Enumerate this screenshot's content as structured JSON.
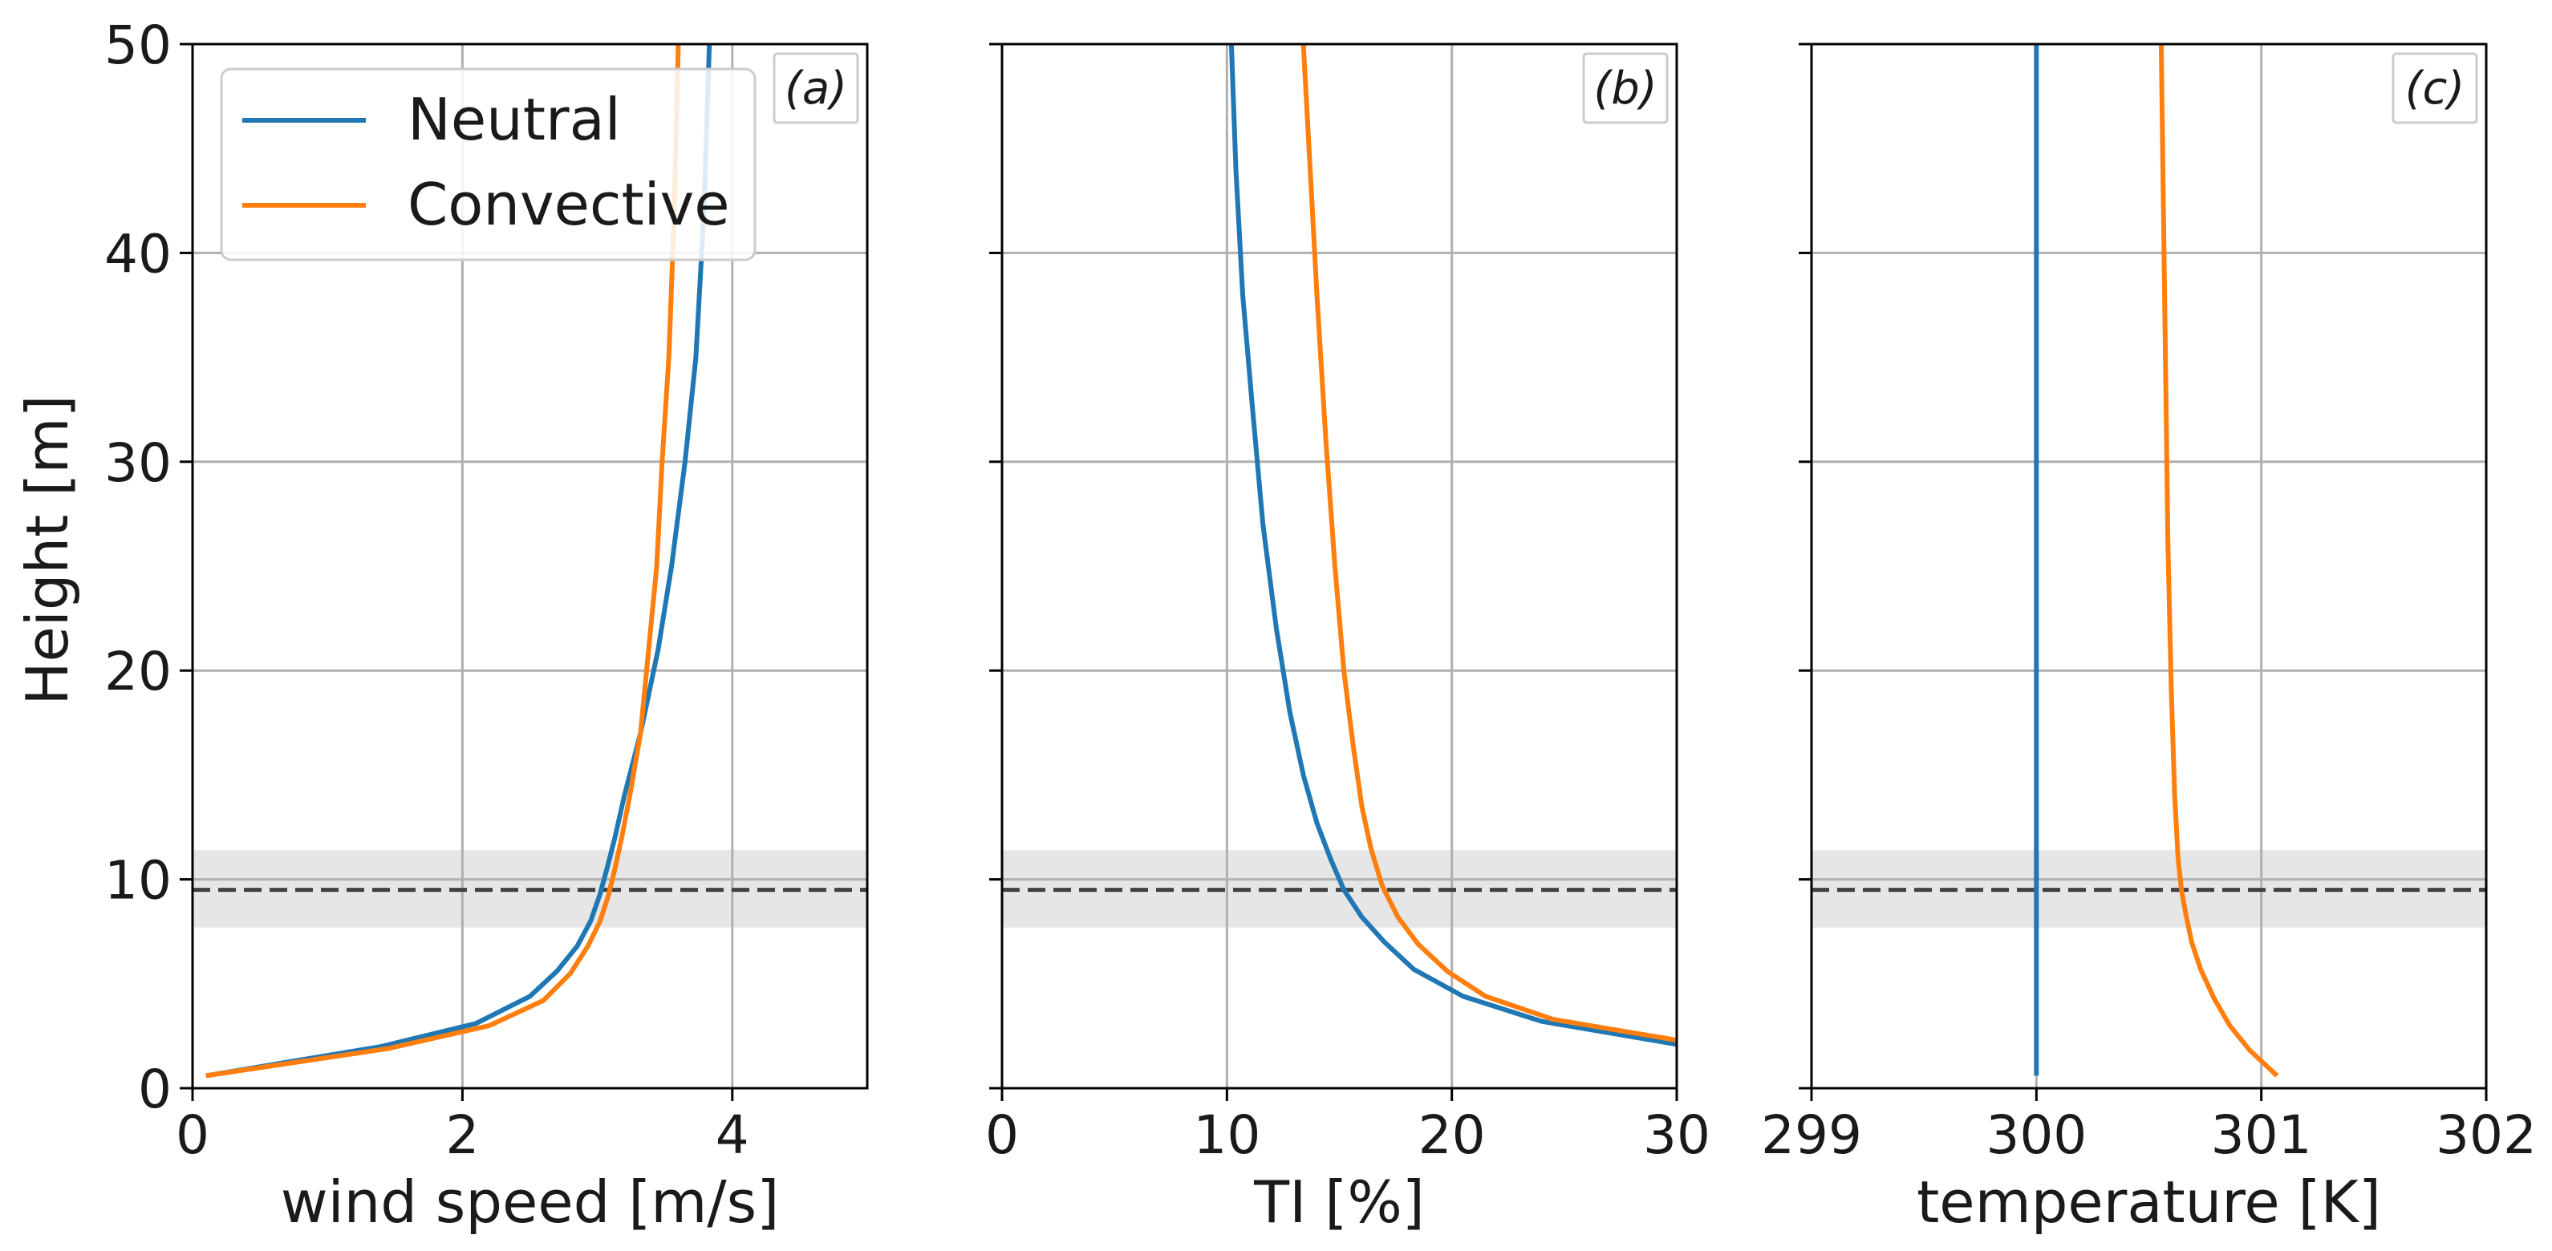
{
  "figure": {
    "ylabel": "Height [m]"
  },
  "legend": {
    "items": [
      {
        "label": "Neutral",
        "color": "#1f77b4"
      },
      {
        "label": "Convective",
        "color": "#ff7f0e"
      }
    ]
  },
  "colors": {
    "neutral": "#1f77b4",
    "convective": "#ff7f0e",
    "band": "#e6e6e6",
    "hline": "#404040",
    "grid": "#b0b0b0"
  },
  "chart_data": [
    {
      "type": "line",
      "panel_label": "(a)",
      "xlabel": "wind speed [m/s]",
      "ylabel": "Height [m]",
      "xlim": [
        0,
        5
      ],
      "ylim": [
        0,
        50
      ],
      "xticks": [
        0,
        2,
        4
      ],
      "yticks": [
        0,
        10,
        20,
        30,
        40,
        50
      ],
      "grid": true,
      "legend_position": "top-left",
      "reference_line": {
        "y": 9.5,
        "style": "dashed"
      },
      "shaded_band": {
        "y0": 7.7,
        "y1": 11.4
      },
      "series": [
        {
          "name": "Neutral",
          "x": [
            0.1,
            1.4,
            2.1,
            2.5,
            2.7,
            2.85,
            2.95,
            3.02,
            3.07,
            3.13,
            3.2,
            3.32,
            3.45,
            3.55,
            3.65,
            3.73,
            3.79,
            3.83
          ],
          "y": [
            0.6,
            2.0,
            3.1,
            4.4,
            5.6,
            6.8,
            8.0,
            9.3,
            10.5,
            12.0,
            14.0,
            17.0,
            21.0,
            25.0,
            30.0,
            35.0,
            42.0,
            50.0
          ]
        },
        {
          "name": "Convective",
          "x": [
            0.1,
            1.45,
            2.2,
            2.6,
            2.8,
            2.93,
            3.02,
            3.08,
            3.13,
            3.18,
            3.24,
            3.32,
            3.38,
            3.44,
            3.48,
            3.53,
            3.57,
            3.6
          ],
          "y": [
            0.6,
            1.9,
            3.0,
            4.2,
            5.5,
            6.8,
            8.0,
            9.2,
            10.5,
            12.0,
            14.0,
            17.0,
            21.0,
            25.0,
            30.0,
            35.0,
            42.0,
            50.0
          ]
        }
      ]
    },
    {
      "type": "line",
      "panel_label": "(b)",
      "xlabel": "TI [%]",
      "xlim": [
        0,
        30
      ],
      "ylim": [
        0,
        50
      ],
      "xticks": [
        0,
        10,
        20,
        30
      ],
      "yticks": [
        0,
        10,
        20,
        30,
        40,
        50
      ],
      "grid": true,
      "reference_line": {
        "y": 9.5,
        "style": "dashed"
      },
      "shaded_band": {
        "y0": 7.7,
        "y1": 11.4
      },
      "series": [
        {
          "name": "Neutral",
          "x": [
            30.0,
            24.0,
            20.5,
            18.3,
            17.0,
            16.0,
            15.2,
            14.6,
            14.0,
            13.4,
            12.8,
            12.2,
            11.6,
            11.1,
            10.7,
            10.4,
            10.2
          ],
          "y": [
            2.1,
            3.2,
            4.4,
            5.7,
            7.0,
            8.2,
            9.5,
            11.0,
            12.7,
            15.0,
            18.0,
            22.0,
            27.0,
            33.0,
            38.0,
            44.0,
            50.0
          ]
        },
        {
          "name": "Convective",
          "x": [
            30.0,
            24.5,
            21.5,
            19.8,
            18.5,
            17.6,
            16.9,
            16.4,
            16.0,
            15.6,
            15.2,
            14.8,
            14.4,
            14.0,
            13.7,
            13.4
          ],
          "y": [
            2.3,
            3.3,
            4.4,
            5.6,
            6.9,
            8.2,
            9.7,
            11.5,
            13.5,
            16.5,
            20.0,
            25.0,
            31.0,
            38.0,
            44.0,
            50.0
          ]
        }
      ]
    },
    {
      "type": "line",
      "panel_label": "(c)",
      "xlabel": "temperature [K]",
      "xlim": [
        299,
        302
      ],
      "ylim": [
        0,
        50
      ],
      "xticks": [
        299,
        300,
        301,
        302
      ],
      "yticks": [
        0,
        10,
        20,
        30,
        40,
        50
      ],
      "grid": true,
      "reference_line": {
        "y": 9.5,
        "style": "dashed"
      },
      "shaded_band": {
        "y0": 7.7,
        "y1": 11.4
      },
      "series": [
        {
          "name": "Neutral",
          "x": [
            300.0,
            300.0
          ],
          "y": [
            0.6,
            50.0
          ]
        },
        {
          "name": "Convective",
          "x": [
            301.07,
            300.95,
            300.86,
            300.79,
            300.73,
            300.69,
            300.665,
            300.645,
            300.63,
            300.615,
            300.6,
            300.585,
            300.575,
            300.565,
            300.555
          ],
          "y": [
            0.6,
            1.8,
            3.0,
            4.3,
            5.7,
            7.0,
            8.3,
            9.5,
            11.0,
            14.0,
            19.0,
            26.0,
            34.0,
            42.0,
            50.0
          ]
        }
      ]
    }
  ]
}
